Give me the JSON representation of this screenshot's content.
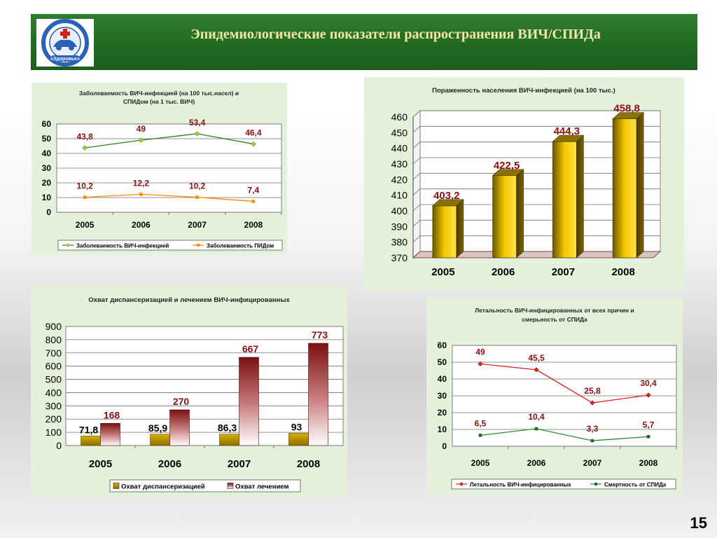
{
  "page": {
    "title": "Эпидемиологические показатели распространения ВИЧ/СПИДа",
    "page_number": "15",
    "logo_text": "«Здоровье»"
  },
  "chart_data": [
    {
      "type": "line",
      "title_line1": "Заболеваемость ВИЧ-инфекцией (на 100 тыс.насел) и",
      "title_line2": "СПИДом (на 1 тыс. ВИЧ)",
      "categories": [
        "2005",
        "2006",
        "2007",
        "2008"
      ],
      "ylim": [
        0,
        60
      ],
      "yticks": [
        0,
        10,
        20,
        30,
        40,
        50,
        60
      ],
      "series": [
        {
          "name": "Заболеваемость ВИЧ-инфекцией",
          "values": [
            43.8,
            49,
            53.4,
            46.4
          ],
          "labels": [
            "43,8",
            "49",
            "53,4",
            "46,4"
          ],
          "color": "#2e7d1f",
          "marker": "#9acd32"
        },
        {
          "name": "Заболеваемость ПИДом",
          "values": [
            10.2,
            12.2,
            10.2,
            7.4
          ],
          "labels": [
            "10,2",
            "12,2",
            "10,2",
            "7,4"
          ],
          "color": "#ff8c00",
          "marker": "#ff8c00"
        }
      ],
      "grid": true,
      "legend": "bottom"
    },
    {
      "type": "bar",
      "title": "Пораженность населения ВИЧ-инфекцией (на 100 тыс.)",
      "categories": [
        "2005",
        "2006",
        "2007",
        "2008"
      ],
      "values": [
        403.2,
        422.5,
        444.3,
        458.8
      ],
      "labels": [
        "403,2",
        "422,5",
        "444,3",
        "458,8"
      ],
      "ylim": [
        370,
        460
      ],
      "yticks": [
        370,
        380,
        390,
        400,
        410,
        420,
        430,
        440,
        450,
        460
      ],
      "color": "#f2c200",
      "grid": true
    },
    {
      "type": "bar",
      "title": "Охват диспансеризацией и лечением ВИЧ-инфицированных",
      "categories": [
        "2005",
        "2006",
        "2007",
        "2008"
      ],
      "ylim": [
        0,
        900
      ],
      "yticks": [
        0,
        100,
        200,
        300,
        400,
        500,
        600,
        700,
        800,
        900
      ],
      "series": [
        {
          "name": "Охват диспансеризацией",
          "values": [
            71.8,
            85.9,
            86.3,
            93
          ],
          "labels": [
            "71,8",
            "85,9",
            "86,3",
            "93"
          ],
          "color": "#c8a200"
        },
        {
          "name": "Охват лечением",
          "values": [
            168,
            270,
            667,
            773
          ],
          "labels": [
            "168",
            "270",
            "667",
            "773"
          ],
          "color": "#8b1a1a"
        }
      ],
      "grid": true,
      "legend": "bottom"
    },
    {
      "type": "line",
      "title_line1": "Летальность ВИЧ-инфицированных от всех причин и",
      "title_line2": "смерьность от СПИДа",
      "categories": [
        "2005",
        "2006",
        "2007",
        "2008"
      ],
      "ylim": [
        0,
        60
      ],
      "yticks": [
        0,
        10,
        20,
        30,
        40,
        50,
        60
      ],
      "series": [
        {
          "name": "Летальность ВИЧ-инфицированных",
          "values": [
            49,
            45.5,
            25.8,
            30.4
          ],
          "labels": [
            "49",
            "45,5",
            "25,8",
            "30,4"
          ],
          "color": "#e02020",
          "marker": "#e02020"
        },
        {
          "name": "Смертность от СПИДа",
          "values": [
            6.5,
            10.4,
            3.3,
            5.7
          ],
          "labels": [
            "6,5",
            "10,4",
            "3,3",
            "5,7"
          ],
          "color": "#2e8b2e",
          "marker": "#1f6e1f"
        }
      ],
      "grid": true,
      "legend": "bottom"
    }
  ]
}
